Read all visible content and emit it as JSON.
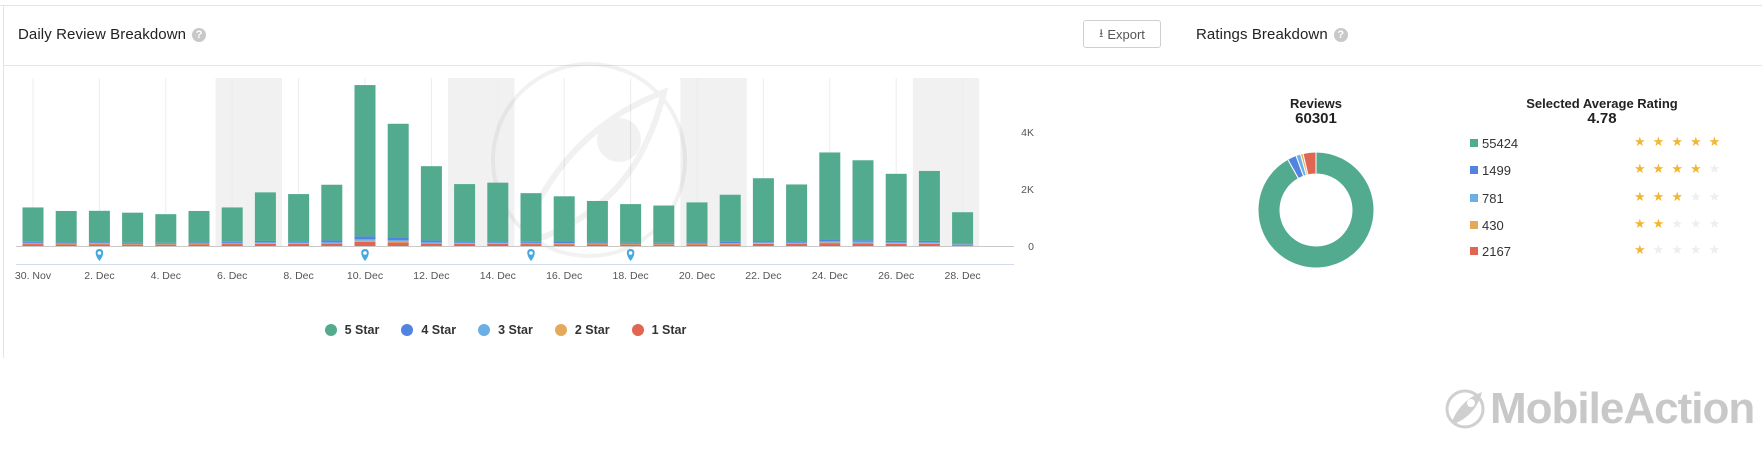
{
  "daily_panel": {
    "title": "Daily Review Breakdown",
    "help": "?",
    "export_label": "Export"
  },
  "ratings_panel": {
    "title": "Ratings Breakdown",
    "help": "?",
    "reviews_label": "Reviews",
    "reviews_value": "60301",
    "avg_label": "Selected Average Rating",
    "avg_value": "4.78",
    "rows": [
      {
        "count": "55424",
        "stars": 5,
        "color": "#52ab8f"
      },
      {
        "count": "1499",
        "stars": 4,
        "color": "#5183e0"
      },
      {
        "count": "781",
        "stars": 3,
        "color": "#6aafe6"
      },
      {
        "count": "430",
        "stars": 2,
        "color": "#e5a95c"
      },
      {
        "count": "2167",
        "stars": 1,
        "color": "#e06651"
      }
    ]
  },
  "brand": {
    "name": "MobileAction"
  },
  "chart_data": {
    "type": "bar",
    "stacked": true,
    "categories": [
      "30. Nov",
      "1. Dec",
      "2. Dec",
      "3. Dec",
      "4. Dec",
      "5. Dec",
      "6. Dec",
      "7. Dec",
      "8. Dec",
      "9. Dec",
      "10. Dec",
      "11. Dec",
      "12. Dec",
      "13. Dec",
      "14. Dec",
      "15. Dec",
      "16. Dec",
      "17. Dec",
      "18. Dec",
      "19. Dec",
      "20. Dec",
      "21. Dec",
      "22. Dec",
      "23. Dec",
      "24. Dec",
      "25. Dec",
      "26. Dec",
      "27. Dec",
      "28. Dec"
    ],
    "x_tick_labels": [
      "30. Nov",
      "2. Dec",
      "4. Dec",
      "6. Dec",
      "8. Dec",
      "10. Dec",
      "12. Dec",
      "14. Dec",
      "16. Dec",
      "18. Dec",
      "20. Dec",
      "22. Dec",
      "24. Dec",
      "26. Dec",
      "28. Dec"
    ],
    "y_ticks": [
      {
        "value": 0,
        "label": "0"
      },
      {
        "value": 2000,
        "label": "2K"
      },
      {
        "value": 4000,
        "label": "4K"
      }
    ],
    "ylim": [
      0,
      6000
    ],
    "y_axis_position": "right",
    "weekend_bands": [
      [
        5.5,
        7.5
      ],
      [
        12.5,
        14.5
      ],
      [
        19.5,
        21.5
      ],
      [
        26.5,
        28.5
      ]
    ],
    "event_markers": [
      2,
      10,
      15,
      18
    ],
    "series": [
      {
        "name": "5 Star",
        "color": "#52ab8f",
        "values": [
          1200,
          1100,
          1100,
          1050,
          1000,
          1100,
          1200,
          1700,
          1650,
          1950,
          5300,
          4000,
          2600,
          2000,
          2050,
          1700,
          1600,
          1450,
          1350,
          1300,
          1400,
          1650,
          2200,
          2000,
          3050,
          2800,
          2350,
          2450,
          1100
        ]
      },
      {
        "name": "4 Star",
        "color": "#5183e0",
        "values": [
          40,
          35,
          35,
          30,
          30,
          35,
          40,
          50,
          45,
          55,
          90,
          80,
          55,
          45,
          45,
          40,
          35,
          35,
          30,
          30,
          35,
          40,
          45,
          40,
          60,
          55,
          50,
          50,
          20
        ]
      },
      {
        "name": "3 Star",
        "color": "#6aafe6",
        "values": [
          25,
          20,
          20,
          20,
          20,
          20,
          25,
          30,
          30,
          35,
          60,
          50,
          35,
          30,
          30,
          25,
          25,
          20,
          20,
          20,
          20,
          25,
          30,
          25,
          40,
          35,
          30,
          30,
          15
        ]
      },
      {
        "name": "2 Star",
        "color": "#e5a95c",
        "values": [
          15,
          12,
          12,
          12,
          10,
          12,
          15,
          18,
          18,
          20,
          35,
          30,
          20,
          18,
          18,
          15,
          15,
          12,
          12,
          12,
          12,
          15,
          18,
          15,
          25,
          22,
          18,
          18,
          8
        ]
      },
      {
        "name": "1 Star",
        "color": "#e06651",
        "values": [
          70,
          60,
          65,
          55,
          55,
          60,
          70,
          80,
          75,
          85,
          150,
          120,
          85,
          75,
          75,
          70,
          65,
          60,
          55,
          55,
          60,
          65,
          80,
          75,
          100,
          90,
          80,
          80,
          40
        ]
      }
    ]
  }
}
